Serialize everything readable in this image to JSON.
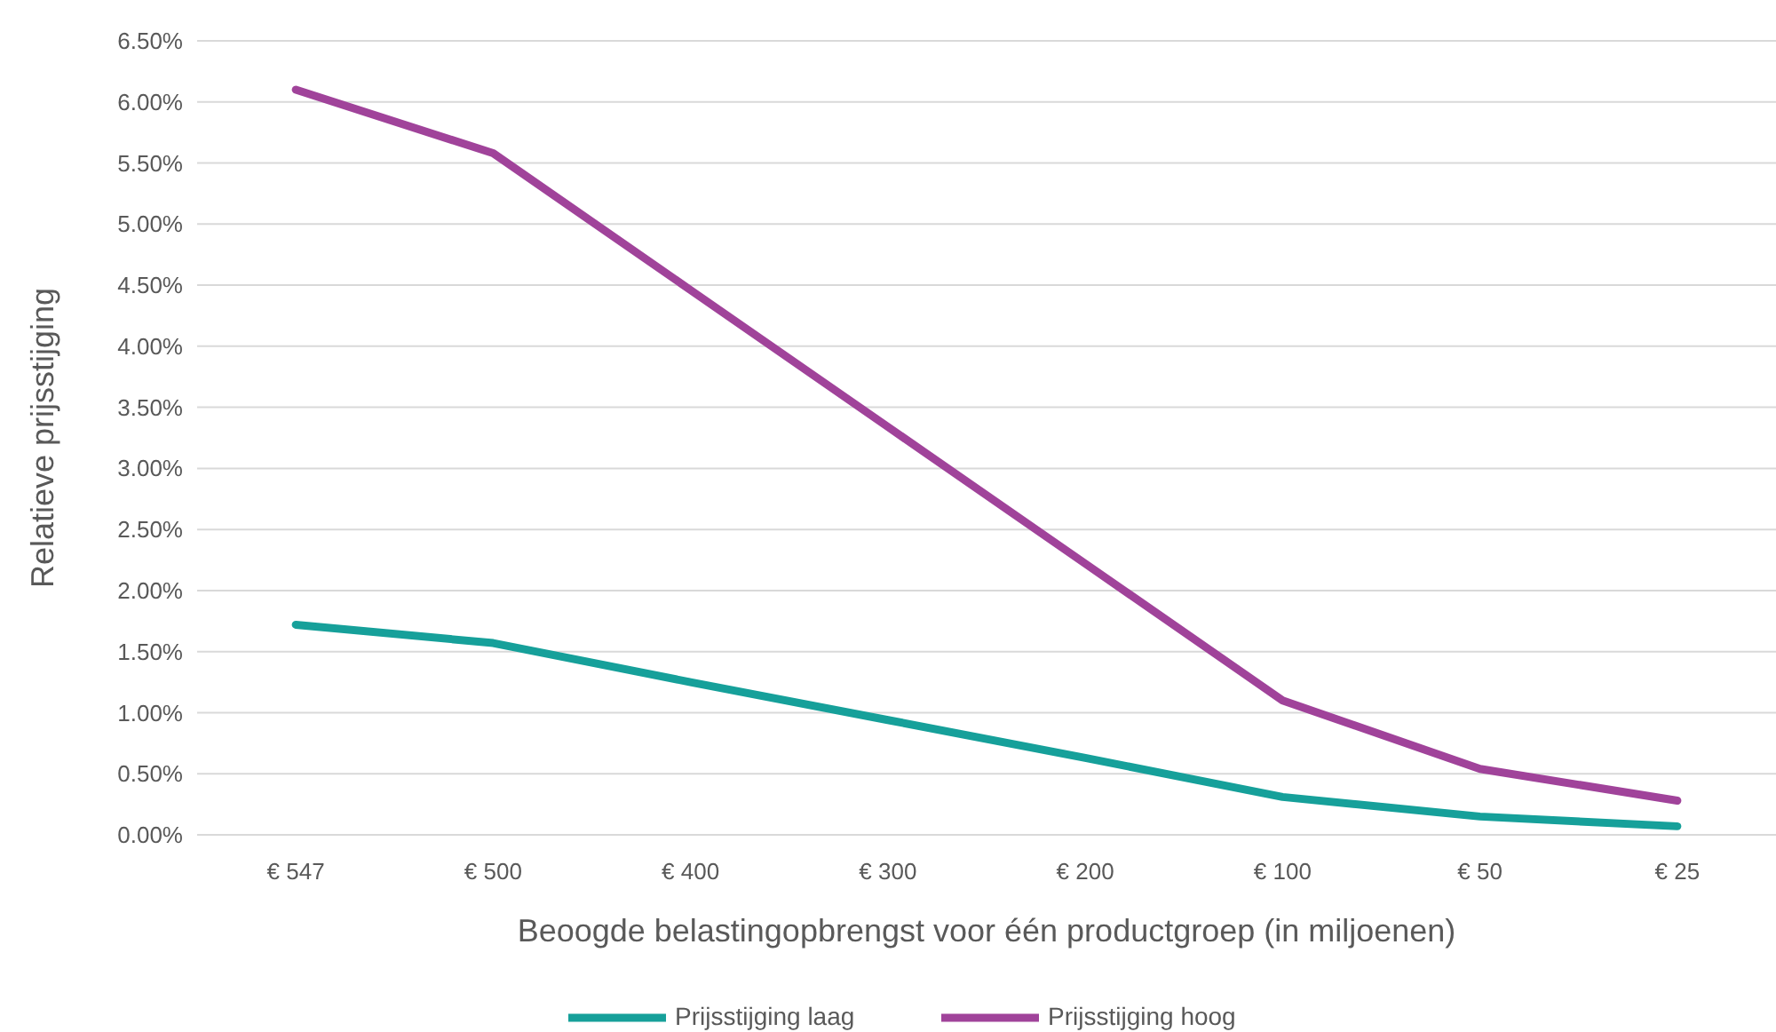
{
  "chart_data": {
    "type": "line",
    "xlabel": "Beoogde belastingopbrengst voor één productgroep (in miljoenen)",
    "ylabel": "Relatieve prijsstijging",
    "categories": [
      "€ 547",
      "€ 500",
      "€ 400",
      "€ 300",
      "€ 200",
      "€ 100",
      "€ 50",
      "€ 25"
    ],
    "series": [
      {
        "name": "Prijsstijging laag",
        "color": "#16a09a",
        "values": [
          1.72,
          1.57,
          1.25,
          0.94,
          0.63,
          0.31,
          0.15,
          0.07
        ]
      },
      {
        "name": "Prijsstijging hoog",
        "color": "#a0439a",
        "values": [
          6.1,
          5.58,
          4.46,
          3.34,
          2.22,
          1.1,
          0.54,
          0.28
        ]
      }
    ],
    "ylim": [
      0,
      6.5
    ],
    "yticks": [
      {
        "value": 0,
        "label": "0.00%"
      },
      {
        "value": 0.5,
        "label": "0.50%"
      },
      {
        "value": 1,
        "label": "1.00%"
      },
      {
        "value": 1.5,
        "label": "1.50%"
      },
      {
        "value": 2,
        "label": "2.00%"
      },
      {
        "value": 2.5,
        "label": "2.50%"
      },
      {
        "value": 3,
        "label": "3.00%"
      },
      {
        "value": 3.5,
        "label": "3.50%"
      },
      {
        "value": 4,
        "label": "4.00%"
      },
      {
        "value": 4.5,
        "label": "4.50%"
      },
      {
        "value": 5,
        "label": "5.00%"
      },
      {
        "value": 5.5,
        "label": "5.50%"
      },
      {
        "value": 6,
        "label": "6.00%"
      },
      {
        "value": 6.5,
        "label": "6.50%"
      }
    ],
    "grid": "y",
    "legend": "bottom",
    "marker": "none",
    "line_style": "solid"
  }
}
